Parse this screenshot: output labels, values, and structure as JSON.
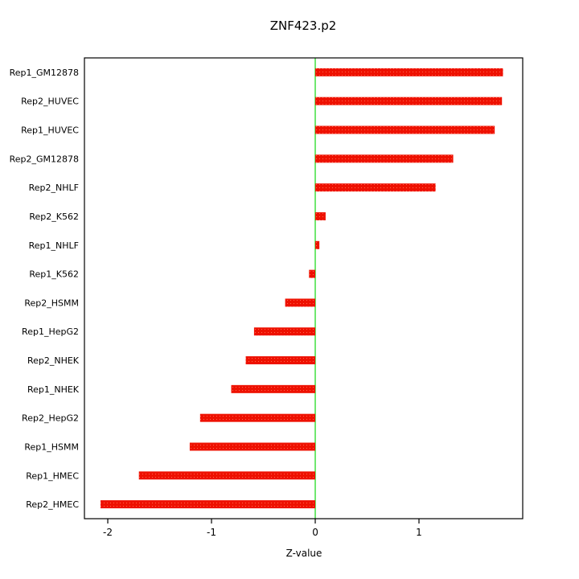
{
  "chart_data": {
    "type": "bar",
    "orientation": "horizontal",
    "title": "ZNF423.p2",
    "xlabel": "Z-value",
    "ylabel": "",
    "xlim": [
      -2.225,
      2.0
    ],
    "xticks": [
      -2,
      -1,
      0,
      1
    ],
    "grid": false,
    "zero_line_at": 0,
    "legend": "none",
    "categories_top_to_bottom": [
      "Rep1_GM12878",
      "Rep2_HUVEC",
      "Rep1_HUVEC",
      "Rep2_GM12878",
      "Rep2_NHLF",
      "Rep2_K562",
      "Rep1_NHLF",
      "Rep1_K562",
      "Rep2_HSMM",
      "Rep1_HepG2",
      "Rep2_NHEK",
      "Rep1_NHEK",
      "Rep2_HepG2",
      "Rep1_HSMM",
      "Rep1_HMEC",
      "Rep2_HMEC"
    ],
    "values": [
      1.81,
      1.8,
      1.73,
      1.33,
      1.16,
      0.1,
      0.04,
      -0.06,
      -0.29,
      -0.59,
      -0.67,
      -0.81,
      -1.11,
      -1.21,
      -1.7,
      -2.07
    ],
    "colors": {
      "bar": "#ee1100",
      "bar_speckle": "#ff6650",
      "zero_line": "#33dd33",
      "axis": "#000000",
      "background": "#ffffff"
    }
  }
}
